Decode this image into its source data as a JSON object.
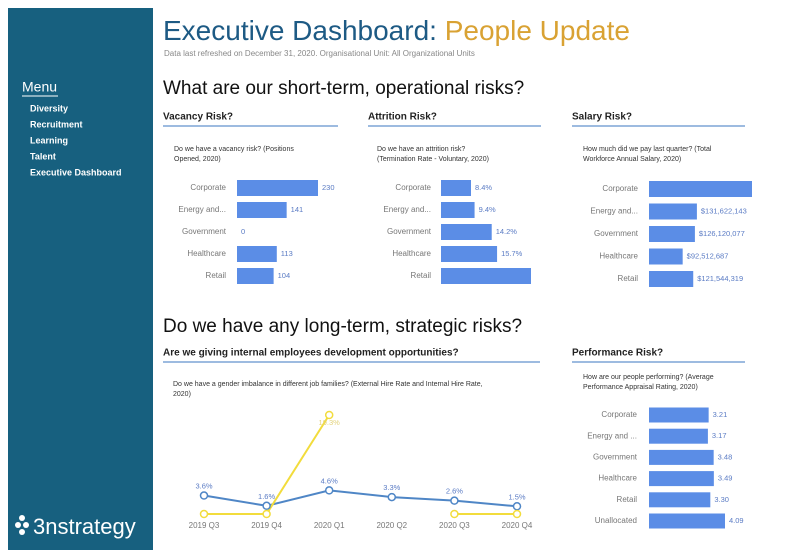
{
  "sidebar": {
    "heading": "Menu",
    "items": [
      "Diversity",
      "Recruitment",
      "Learning",
      "Talent",
      "Executive Dashboard"
    ],
    "logo": "3nstrategy"
  },
  "header": {
    "title": "Executive Dashboard:",
    "title_highlight": "People Update",
    "subtitle": "Data last refreshed on December 31, 2020. Organisational Unit: All Organizational Units"
  },
  "sections": [
    "What are our short-term, operational risks?",
    "Do we have any long-term, strategic risks?"
  ],
  "panels": {
    "vacancy": {
      "type": "bar",
      "title": "Vacancy Risk?",
      "subtitle": [
        "Do we have a vacancy risk? (Positions",
        "Opened, 2020)"
      ],
      "categories": [
        "Corporate",
        "Energy and...",
        "Government",
        "Healthcare",
        "Retail"
      ],
      "values": [
        230,
        141,
        0,
        113,
        104
      ],
      "color": "#5b8de6"
    },
    "attrition": {
      "type": "bar",
      "title": "Attrition Risk?",
      "subtitle": [
        "Do we have an attrition risk?",
        "(Termination Rate - Voluntary, 2020)"
      ],
      "categories": [
        "Corporate",
        "Energy and...",
        "Government",
        "Healthcare",
        "Retail"
      ],
      "values": [
        8.4,
        9.4,
        14.2,
        15.7,
        25.2
      ],
      "value_labels": [
        "8.4%",
        "9.4%",
        "14.2%",
        "15.7%",
        null
      ],
      "color": "#5b8de6"
    },
    "salary": {
      "type": "bar",
      "title": "Salary Risk?",
      "subtitle": [
        "How much did we pay last quarter? (Total",
        "Workforce Annual Salary, 2020)"
      ],
      "categories": [
        "Corporate",
        "Energy and...",
        "Government",
        "Healthcare",
        "Retail"
      ],
      "values": [
        283000000,
        131622143,
        126120077,
        92512687,
        121544319
      ],
      "value_labels": [
        null,
        "$131,622,143",
        "$126,120,077",
        "$92,512,687",
        "$121,544,319"
      ],
      "color": "#5b8de6"
    },
    "development": {
      "type": "line",
      "title": "Are we giving internal employees development opportunities?",
      "subtitle": [
        "Do we have a gender imbalance in different job families? (External Hire Rate and Internal Hire Rate,",
        "2020)"
      ],
      "categories": [
        "2019 Q3",
        "2019 Q4",
        "2020 Q1",
        "2020 Q2",
        "2020 Q3",
        "2020 Q4"
      ],
      "series": [
        {
          "color": "#4f86c6",
          "values": [
            3.6,
            1.6,
            4.6,
            3.3,
            2.6,
            1.5
          ],
          "value_labels": [
            "3.6%",
            "1.6%",
            "4.6%",
            "3.3%",
            "2.6%",
            "1.5%"
          ]
        },
        {
          "color": "#f2dc3c",
          "values": [
            0,
            0,
            19.3,
            null,
            0,
            0
          ],
          "value_labels": [
            null,
            null,
            "19.3%",
            null,
            null,
            null
          ]
        }
      ]
    },
    "performance": {
      "type": "bar",
      "title": "Performance Risk?",
      "subtitle": [
        "How are our people performing? (Average",
        "Performance Appraisal Rating, 2020)"
      ],
      "categories": [
        "Corporate",
        "Energy and ...",
        "Government",
        "Healthcare",
        "Retail",
        "Unallocated"
      ],
      "values": [
        3.21,
        3.17,
        3.48,
        3.49,
        3.3,
        4.09
      ],
      "value_labels": [
        "3.21",
        "3.17",
        "3.48",
        "3.49",
        "3.30",
        "4.09"
      ],
      "color": "#5b8de6"
    }
  }
}
